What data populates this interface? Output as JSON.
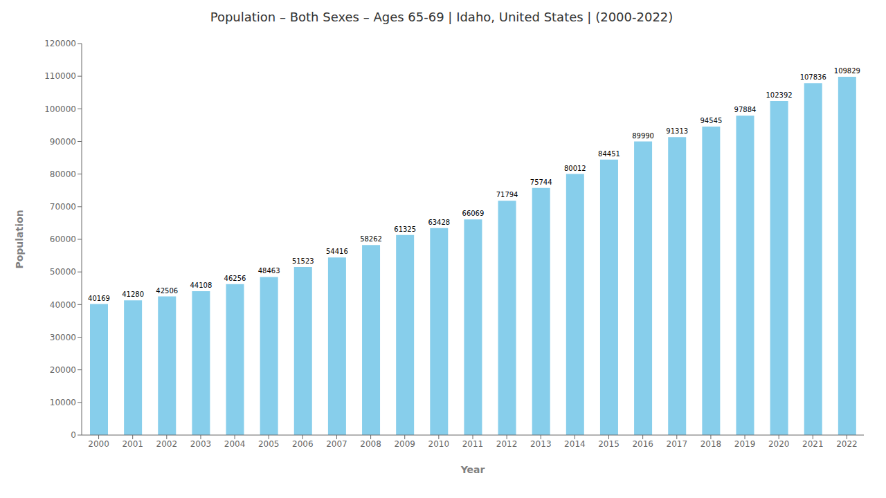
{
  "chart_data": {
    "type": "bar",
    "title": "Population – Both Sexes – Ages 65-69 | Idaho, United States |  (2000-2022)",
    "xlabel": "Year",
    "ylabel": "Population",
    "categories": [
      "2000",
      "2001",
      "2002",
      "2003",
      "2004",
      "2005",
      "2006",
      "2007",
      "2008",
      "2009",
      "2010",
      "2011",
      "2012",
      "2013",
      "2014",
      "2015",
      "2016",
      "2017",
      "2018",
      "2019",
      "2020",
      "2021",
      "2022"
    ],
    "values": [
      40169,
      41280,
      42506,
      44108,
      46256,
      48463,
      51523,
      54416,
      58262,
      61325,
      63428,
      66069,
      71794,
      75744,
      80012,
      84451,
      89990,
      91313,
      94545,
      97884,
      102392,
      107836,
      109829
    ],
    "color": "#87CEEB",
    "ylim": [
      0,
      120000
    ],
    "yticks": [
      0,
      10000,
      20000,
      30000,
      40000,
      50000,
      60000,
      70000,
      80000,
      90000,
      100000,
      110000,
      120000
    ],
    "grid": false,
    "data_labels": true
  }
}
